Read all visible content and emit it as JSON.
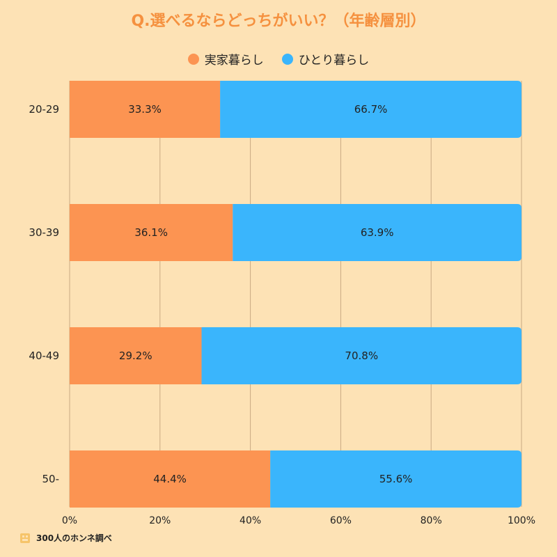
{
  "title": "Q.選べるならどっちがいい？（年齢層別）",
  "footer": {
    "text": "300人のホンネ調べ"
  },
  "colors": {
    "background": "#fde2b5",
    "title": "#f5913f",
    "grid": "#c9a982"
  },
  "chart_data": {
    "type": "bar",
    "orientation": "horizontal",
    "stacked": true,
    "categories": [
      "20-29",
      "30-39",
      "40-49",
      "50-"
    ],
    "series": [
      {
        "name": "実家暮らし",
        "color": "#fc9452",
        "values": [
          33.3,
          36.1,
          29.2,
          44.4
        ],
        "labels": [
          "33.3%",
          "36.1%",
          "29.2%",
          "44.4%"
        ]
      },
      {
        "name": "ひとり暮らし",
        "color": "#3ab5fc",
        "values": [
          66.7,
          63.9,
          70.8,
          55.6
        ],
        "labels": [
          "66.7%",
          "63.9%",
          "70.8%",
          "55.6%"
        ]
      }
    ],
    "x_ticks": [
      "0%",
      "20%",
      "40%",
      "60%",
      "80%",
      "100%"
    ],
    "xlim": [
      0,
      100
    ],
    "grid": true,
    "legend_position": "top-center"
  }
}
